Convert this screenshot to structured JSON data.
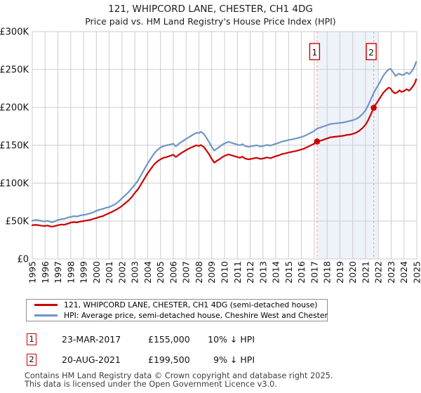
{
  "title": "121, WHIPCORD LANE, CHESTER, CH1 4DG",
  "subtitle": "Price paid vs. HM Land Registry's House Price Index (HPI)",
  "chart_data": {
    "type": "line",
    "x_axis": {
      "min": 1995,
      "max": 2025
    },
    "y_axis": {
      "min": 0,
      "max": 300000,
      "tick_step": 50000,
      "tick_labels": [
        "£0",
        "£50K",
        "£100K",
        "£150K",
        "£200K",
        "£250K",
        "£300K"
      ]
    },
    "grid": true,
    "grid_color": "#cccccc",
    "band": {
      "from": 2017.22,
      "to": 2022.0,
      "color": "#eef2f9"
    },
    "sale_line_color": "#f19999",
    "marker_color": "#cc0000",
    "flag_border_color": "#cc0000",
    "series": [
      {
        "id": "property",
        "name": "121, WHIPCORD LANE, CHESTER, CH1 4DG (semi-detached house)",
        "color": "#cc0000",
        "points": [
          [
            1995.0,
            44500
          ],
          [
            1995.25,
            45000
          ],
          [
            1995.5,
            44500
          ],
          [
            1995.75,
            43800
          ],
          [
            1996.0,
            43500
          ],
          [
            1996.2,
            44200
          ],
          [
            1996.4,
            43000
          ],
          [
            1996.6,
            42800
          ],
          [
            1996.8,
            43600
          ],
          [
            1997.0,
            44500
          ],
          [
            1997.25,
            45500
          ],
          [
            1997.5,
            45200
          ],
          [
            1997.75,
            46500
          ],
          [
            1998.0,
            48000
          ],
          [
            1998.25,
            48600
          ],
          [
            1998.5,
            48200
          ],
          [
            1998.75,
            49400
          ],
          [
            1999.0,
            50000
          ],
          [
            1999.25,
            50800
          ],
          [
            1999.5,
            51500
          ],
          [
            1999.75,
            52800
          ],
          [
            2000.0,
            54000
          ],
          [
            2000.25,
            55500
          ],
          [
            2000.5,
            56500
          ],
          [
            2000.75,
            58500
          ],
          [
            2001.0,
            60500
          ],
          [
            2001.25,
            62500
          ],
          [
            2001.5,
            64500
          ],
          [
            2001.75,
            67000
          ],
          [
            2002.0,
            70000
          ],
          [
            2002.25,
            73500
          ],
          [
            2002.5,
            77000
          ],
          [
            2002.75,
            81500
          ],
          [
            2003.0,
            87000
          ],
          [
            2003.25,
            92000
          ],
          [
            2003.5,
            99000
          ],
          [
            2003.75,
            106000
          ],
          [
            2004.0,
            113000
          ],
          [
            2004.25,
            119000
          ],
          [
            2004.5,
            124500
          ],
          [
            2004.75,
            128500
          ],
          [
            2005.0,
            131500
          ],
          [
            2005.25,
            133500
          ],
          [
            2005.5,
            134500
          ],
          [
            2005.75,
            136000
          ],
          [
            2006.0,
            137500
          ],
          [
            2006.2,
            134500
          ],
          [
            2006.4,
            137000
          ],
          [
            2006.6,
            139500
          ],
          [
            2006.8,
            141500
          ],
          [
            2007.0,
            143500
          ],
          [
            2007.2,
            145500
          ],
          [
            2007.4,
            147000
          ],
          [
            2007.6,
            148500
          ],
          [
            2007.8,
            150000
          ],
          [
            2008.0,
            149000
          ],
          [
            2008.15,
            150400
          ],
          [
            2008.4,
            147500
          ],
          [
            2008.6,
            143000
          ],
          [
            2008.8,
            138000
          ],
          [
            2009.0,
            132000
          ],
          [
            2009.2,
            127000
          ],
          [
            2009.4,
            129500
          ],
          [
            2009.6,
            131500
          ],
          [
            2009.8,
            134000
          ],
          [
            2010.0,
            136000
          ],
          [
            2010.3,
            138000
          ],
          [
            2010.6,
            136500
          ],
          [
            2010.9,
            135000
          ],
          [
            2011.2,
            133500
          ],
          [
            2011.4,
            135000
          ],
          [
            2011.6,
            132500
          ],
          [
            2011.9,
            131500
          ],
          [
            2012.2,
            132500
          ],
          [
            2012.5,
            133500
          ],
          [
            2012.8,
            132000
          ],
          [
            2013.0,
            132500
          ],
          [
            2013.3,
            134000
          ],
          [
            2013.6,
            133000
          ],
          [
            2013.9,
            135000
          ],
          [
            2014.2,
            136500
          ],
          [
            2014.5,
            138500
          ],
          [
            2014.8,
            139500
          ],
          [
            2015.0,
            140500
          ],
          [
            2015.3,
            141500
          ],
          [
            2015.6,
            142500
          ],
          [
            2015.9,
            144000
          ],
          [
            2016.2,
            145500
          ],
          [
            2016.5,
            148000
          ],
          [
            2016.8,
            150500
          ],
          [
            2017.0,
            152000
          ],
          [
            2017.22,
            155000
          ],
          [
            2017.5,
            156000
          ],
          [
            2017.75,
            157500
          ],
          [
            2018.0,
            159000
          ],
          [
            2018.25,
            160500
          ],
          [
            2018.5,
            161000
          ],
          [
            2018.75,
            161500
          ],
          [
            2019.0,
            162000
          ],
          [
            2019.25,
            162500
          ],
          [
            2019.5,
            163500
          ],
          [
            2019.75,
            164000
          ],
          [
            2020.0,
            165000
          ],
          [
            2020.25,
            166500
          ],
          [
            2020.5,
            169000
          ],
          [
            2020.75,
            172500
          ],
          [
            2021.0,
            177000
          ],
          [
            2021.2,
            183000
          ],
          [
            2021.4,
            190000
          ],
          [
            2021.64,
            199500
          ],
          [
            2021.8,
            204000
          ],
          [
            2022.0,
            209000
          ],
          [
            2022.2,
            214500
          ],
          [
            2022.4,
            219500
          ],
          [
            2022.6,
            223000
          ],
          [
            2022.8,
            226000
          ],
          [
            2022.95,
            225000
          ],
          [
            2023.1,
            221000
          ],
          [
            2023.3,
            218500
          ],
          [
            2023.5,
            220000
          ],
          [
            2023.65,
            222500
          ],
          [
            2023.8,
            220500
          ],
          [
            2024.0,
            221500
          ],
          [
            2024.2,
            224000
          ],
          [
            2024.4,
            222000
          ],
          [
            2024.55,
            224500
          ],
          [
            2024.7,
            228000
          ],
          [
            2024.85,
            232000
          ],
          [
            2024.95,
            237000
          ]
        ]
      },
      {
        "id": "hpi",
        "name": "HPI: Average price, semi-detached house, Cheshire West and Chester",
        "color": "#6f95c6",
        "points": [
          [
            1995.0,
            50500
          ],
          [
            1995.25,
            51500
          ],
          [
            1995.5,
            51000
          ],
          [
            1995.75,
            50000
          ],
          [
            1996.0,
            49500
          ],
          [
            1996.2,
            50500
          ],
          [
            1996.4,
            49000
          ],
          [
            1996.6,
            48500
          ],
          [
            1996.8,
            50000
          ],
          [
            1997.0,
            51500
          ],
          [
            1997.25,
            52500
          ],
          [
            1997.5,
            53000
          ],
          [
            1997.75,
            54500
          ],
          [
            1998.0,
            55500
          ],
          [
            1998.25,
            56500
          ],
          [
            1998.5,
            56000
          ],
          [
            1998.75,
            57500
          ],
          [
            1999.0,
            58000
          ],
          [
            1999.25,
            59000
          ],
          [
            1999.5,
            60000
          ],
          [
            1999.75,
            61500
          ],
          [
            2000.0,
            63500
          ],
          [
            2000.25,
            65000
          ],
          [
            2000.5,
            66000
          ],
          [
            2000.75,
            67500
          ],
          [
            2001.0,
            68500
          ],
          [
            2001.25,
            70500
          ],
          [
            2001.5,
            72500
          ],
          [
            2001.75,
            76000
          ],
          [
            2002.0,
            80000
          ],
          [
            2002.25,
            84000
          ],
          [
            2002.5,
            88000
          ],
          [
            2002.75,
            93000
          ],
          [
            2003.0,
            98000
          ],
          [
            2003.25,
            103500
          ],
          [
            2003.5,
            111000
          ],
          [
            2003.75,
            118500
          ],
          [
            2004.0,
            126000
          ],
          [
            2004.25,
            132500
          ],
          [
            2004.5,
            139000
          ],
          [
            2004.75,
            143500
          ],
          [
            2005.0,
            147000
          ],
          [
            2005.25,
            149000
          ],
          [
            2005.5,
            150000
          ],
          [
            2005.75,
            151000
          ],
          [
            2006.0,
            152000
          ],
          [
            2006.2,
            148500
          ],
          [
            2006.4,
            151500
          ],
          [
            2006.6,
            154000
          ],
          [
            2006.8,
            156000
          ],
          [
            2007.0,
            158500
          ],
          [
            2007.2,
            160500
          ],
          [
            2007.4,
            162500
          ],
          [
            2007.6,
            164500
          ],
          [
            2007.8,
            166500
          ],
          [
            2008.0,
            166000
          ],
          [
            2008.15,
            168000
          ],
          [
            2008.4,
            164500
          ],
          [
            2008.6,
            159500
          ],
          [
            2008.8,
            154000
          ],
          [
            2009.0,
            148000
          ],
          [
            2009.2,
            143000
          ],
          [
            2009.4,
            145500
          ],
          [
            2009.6,
            148000
          ],
          [
            2009.8,
            150500
          ],
          [
            2010.0,
            152500
          ],
          [
            2010.3,
            154500
          ],
          [
            2010.6,
            153000
          ],
          [
            2010.9,
            151500
          ],
          [
            2011.2,
            150000
          ],
          [
            2011.4,
            151500
          ],
          [
            2011.6,
            149000
          ],
          [
            2011.9,
            148000
          ],
          [
            2012.2,
            149000
          ],
          [
            2012.5,
            150000
          ],
          [
            2012.8,
            148500
          ],
          [
            2013.0,
            149000
          ],
          [
            2013.3,
            150500
          ],
          [
            2013.6,
            149500
          ],
          [
            2013.9,
            151500
          ],
          [
            2014.2,
            153000
          ],
          [
            2014.5,
            155000
          ],
          [
            2014.8,
            156000
          ],
          [
            2015.0,
            157000
          ],
          [
            2015.3,
            158000
          ],
          [
            2015.6,
            159000
          ],
          [
            2015.9,
            160500
          ],
          [
            2016.2,
            162000
          ],
          [
            2016.5,
            164500
          ],
          [
            2016.8,
            167000
          ],
          [
            2017.0,
            169000
          ],
          [
            2017.22,
            172000
          ],
          [
            2017.5,
            173500
          ],
          [
            2017.75,
            175000
          ],
          [
            2018.0,
            176500
          ],
          [
            2018.25,
            178000
          ],
          [
            2018.5,
            178500
          ],
          [
            2018.75,
            179000
          ],
          [
            2019.0,
            179500
          ],
          [
            2019.25,
            180000
          ],
          [
            2019.5,
            181000
          ],
          [
            2019.75,
            182000
          ],
          [
            2020.0,
            183000
          ],
          [
            2020.25,
            184500
          ],
          [
            2020.5,
            187000
          ],
          [
            2020.75,
            191000
          ],
          [
            2021.0,
            196000
          ],
          [
            2021.2,
            202500
          ],
          [
            2021.4,
            210000
          ],
          [
            2021.64,
            219000
          ],
          [
            2021.8,
            224000
          ],
          [
            2022.0,
            229500
          ],
          [
            2022.2,
            236000
          ],
          [
            2022.4,
            242000
          ],
          [
            2022.6,
            246500
          ],
          [
            2022.8,
            250000
          ],
          [
            2022.95,
            251000
          ],
          [
            2023.1,
            247500
          ],
          [
            2023.35,
            241500
          ],
          [
            2023.6,
            244500
          ],
          [
            2023.8,
            243000
          ],
          [
            2024.0,
            243000
          ],
          [
            2024.2,
            246000
          ],
          [
            2024.4,
            244000
          ],
          [
            2024.55,
            246500
          ],
          [
            2024.7,
            250000
          ],
          [
            2024.85,
            255000
          ],
          [
            2024.95,
            260000
          ]
        ]
      }
    ],
    "sales": [
      {
        "n": "1",
        "x": 2017.22,
        "price": 155000,
        "date": "23-MAR-2017",
        "price_label": "£155,000",
        "hpi_diff": "10% ↓ HPI"
      },
      {
        "n": "2",
        "x": 2021.64,
        "price": 199500,
        "date": "20-AUG-2021",
        "price_label": "£199,500",
        "hpi_diff": "9% ↓ HPI"
      }
    ]
  },
  "legend": {
    "items": [
      {
        "label": "121, WHIPCORD LANE, CHESTER, CH1 4DG (semi-detached house)"
      },
      {
        "label": "HPI: Average price, semi-detached house, Cheshire West and Chester"
      }
    ]
  },
  "footer": {
    "line1": "Contains HM Land Registry data © Crown copyright and database right 2025.",
    "line2": "This data is licensed under the Open Government Licence v3.0."
  }
}
